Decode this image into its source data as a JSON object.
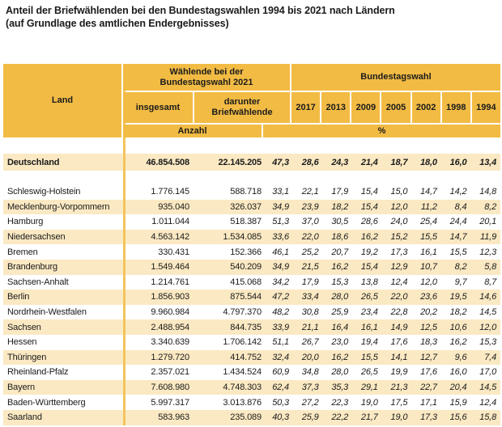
{
  "chart_data": {
    "type": "table",
    "title": "Anteil der Briefwählenden bei den Bundestagswahlen 1994 bis 2021 nach Ländern",
    "subtitle": "(auf Grundlage des amtlichen Endergebnisses)",
    "header": {
      "land": "Land",
      "waehlende_2021": "Wählende bei der\nBundestagswahl 2021",
      "insgesamt": "insgesamt",
      "darunter": "darunter\nBriefwählende",
      "bundestagswahl": "Bundestagswahl",
      "anzahl": "Anzahl",
      "percent": "%",
      "years": [
        "2017",
        "2013",
        "2009",
        "2005",
        "2002",
        "1998",
        "1994"
      ]
    },
    "columns": [
      "Land",
      "Wählende Bundestagswahl 2021 insgesamt (Anzahl)",
      "darunter Briefwählende (Anzahl)",
      "darunter Briefwählende (%)",
      "2017 (%)",
      "2013 (%)",
      "2009 (%)",
      "2005 (%)",
      "2002 (%)",
      "1998 (%)",
      "1994 (%)"
    ],
    "summary_row": {
      "land": "Deutschland",
      "values": [
        "46.854.508",
        "22.145.205",
        "47,3",
        "28,6",
        "24,3",
        "21,4",
        "18,7",
        "18,0",
        "16,0",
        "13,4"
      ]
    },
    "rows": [
      {
        "land": "Schleswig-Holstein",
        "values": [
          "1.776.145",
          "588.718",
          "33,1",
          "22,1",
          "17,9",
          "15,4",
          "15,0",
          "14,7",
          "14,2",
          "14,8"
        ]
      },
      {
        "land": "Mecklenburg-Vorpommern",
        "values": [
          "935.040",
          "326.037",
          "34,9",
          "23,9",
          "18,2",
          "15,4",
          "12,0",
          "11,2",
          "8,4",
          "8,2"
        ]
      },
      {
        "land": "Hamburg",
        "values": [
          "1.011.044",
          "518.387",
          "51,3",
          "37,0",
          "30,5",
          "28,6",
          "24,0",
          "25,4",
          "24,4",
          "20,1"
        ]
      },
      {
        "land": "Niedersachsen",
        "values": [
          "4.563.142",
          "1.534.085",
          "33,6",
          "22,0",
          "18,6",
          "16,2",
          "15,2",
          "15,5",
          "14,7",
          "11,9"
        ]
      },
      {
        "land": "Bremen",
        "values": [
          "330.431",
          "152.366",
          "46,1",
          "25,2",
          "20,7",
          "19,2",
          "17,3",
          "16,1",
          "15,5",
          "12,3"
        ]
      },
      {
        "land": "Brandenburg",
        "values": [
          "1.549.464",
          "540.209",
          "34,9",
          "21,5",
          "16,2",
          "15,4",
          "12,9",
          "10,7",
          "8,2",
          "5,8"
        ]
      },
      {
        "land": "Sachsen-Anhalt",
        "values": [
          "1.214.761",
          "415.068",
          "34,2",
          "17,9",
          "15,3",
          "13,8",
          "12,4",
          "12,0",
          "9,7",
          "8,7"
        ]
      },
      {
        "land": "Berlin",
        "values": [
          "1.856.903",
          "875.544",
          "47,2",
          "33,4",
          "28,0",
          "26,5",
          "22,0",
          "23,6",
          "19,5",
          "14,6"
        ]
      },
      {
        "land": "Nordrhein-Westfalen",
        "values": [
          "9.960.984",
          "4.797.370",
          "48,2",
          "30,8",
          "25,9",
          "23,4",
          "22,8",
          "20,2",
          "18,2",
          "14,5"
        ]
      },
      {
        "land": "Sachsen",
        "values": [
          "2.488.954",
          "844.735",
          "33,9",
          "21,1",
          "16,4",
          "16,1",
          "14,9",
          "12,5",
          "10,6",
          "12,0"
        ]
      },
      {
        "land": "Hessen",
        "values": [
          "3.340.639",
          "1.706.142",
          "51,1",
          "26,7",
          "23,0",
          "19,4",
          "17,6",
          "18,3",
          "16,2",
          "15,3"
        ]
      },
      {
        "land": "Thüringen",
        "values": [
          "1.279.720",
          "414.752",
          "32,4",
          "20,0",
          "16,2",
          "15,5",
          "14,1",
          "12,7",
          "9,6",
          "7,4"
        ]
      },
      {
        "land": "Rheinland-Pfalz",
        "values": [
          "2.357.021",
          "1.434.524",
          "60,9",
          "34,8",
          "28,0",
          "26,5",
          "19,9",
          "17,6",
          "16,0",
          "17,0"
        ]
      },
      {
        "land": "Bayern",
        "values": [
          "7.608.980",
          "4.748.303",
          "62,4",
          "37,3",
          "35,3",
          "29,1",
          "21,3",
          "22,7",
          "20,4",
          "14,5"
        ]
      },
      {
        "land": "Baden-Württemberg",
        "values": [
          "5.997.317",
          "3.013.876",
          "50,3",
          "27,2",
          "22,3",
          "19,0",
          "17,5",
          "17,1",
          "15,9",
          "12,4"
        ]
      },
      {
        "land": "Saarland",
        "values": [
          "583.963",
          "235.089",
          "40,3",
          "25,9",
          "22,2",
          "21,7",
          "19,0",
          "17,3",
          "15,6",
          "15,8"
        ]
      }
    ],
    "colors": {
      "header_gold": "#F2BB44",
      "row_pale": "#FBE9C3",
      "divider_gold": "#F3C35C",
      "text": "#1B1B1B"
    },
    "layout": {
      "legend": "none",
      "grid": "striped-rows",
      "summary_row_position": "top"
    }
  }
}
